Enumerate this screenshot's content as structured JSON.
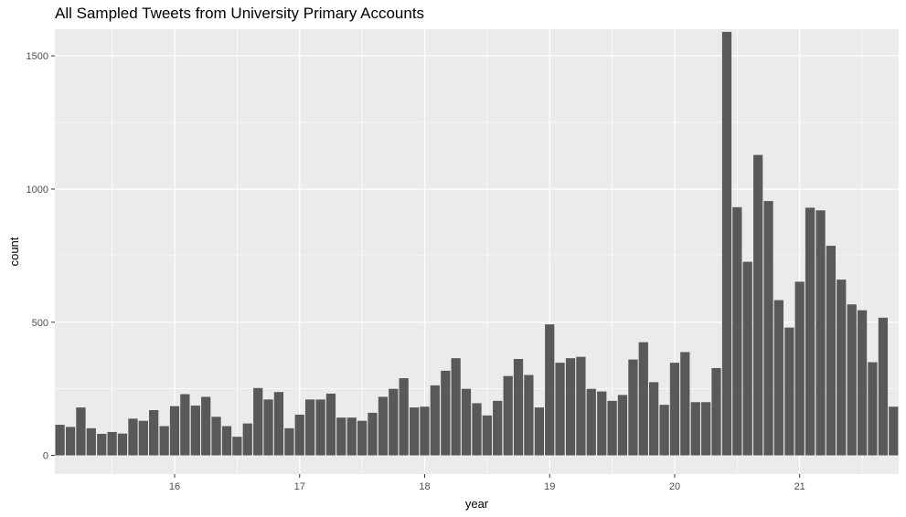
{
  "chart_data": {
    "type": "bar",
    "title": "All Sampled Tweets from University Primary Accounts",
    "xlabel": "year",
    "ylabel": "count",
    "xlim": [
      15.042,
      21.792
    ],
    "ylim": [
      -70,
      1600
    ],
    "x_ticks": [
      16,
      17,
      18,
      19,
      20,
      21
    ],
    "y_ticks": [
      0,
      500,
      1000,
      1500
    ],
    "grid": true,
    "bar_color": "#595959",
    "panel_background": "#ebebeb",
    "grid_color": "#ffffff",
    "x": [
      15.083,
      15.167,
      15.25,
      15.333,
      15.417,
      15.5,
      15.583,
      15.667,
      15.75,
      15.833,
      15.917,
      16.0,
      16.083,
      16.167,
      16.25,
      16.333,
      16.417,
      16.5,
      16.583,
      16.667,
      16.75,
      16.833,
      16.917,
      17.0,
      17.083,
      17.167,
      17.25,
      17.333,
      17.417,
      17.5,
      17.583,
      17.667,
      17.75,
      17.833,
      17.917,
      18.0,
      18.083,
      18.167,
      18.25,
      18.333,
      18.417,
      18.5,
      18.583,
      18.667,
      18.75,
      18.833,
      18.917,
      19.0,
      19.083,
      19.167,
      19.25,
      19.333,
      19.417,
      19.5,
      19.583,
      19.667,
      19.75,
      19.833,
      19.917,
      20.0,
      20.083,
      20.167,
      20.25,
      20.333,
      20.417,
      20.5,
      20.583,
      20.667,
      20.75,
      20.833,
      20.917,
      21.0,
      21.083,
      21.167,
      21.25,
      21.333,
      21.417,
      21.5,
      21.583,
      21.667,
      21.75
    ],
    "values": [
      115,
      107,
      180,
      102,
      81,
      88,
      82,
      138,
      130,
      170,
      110,
      185,
      230,
      187,
      220,
      145,
      110,
      70,
      120,
      253,
      210,
      238,
      102,
      153,
      210,
      210,
      232,
      142,
      142,
      130,
      160,
      220,
      250,
      290,
      180,
      183,
      263,
      318,
      365,
      250,
      196,
      150,
      205,
      298,
      362,
      302,
      180,
      492,
      348,
      365,
      370,
      250,
      240,
      205,
      227,
      360,
      425,
      275,
      190,
      348,
      388,
      200,
      200,
      328,
      1590,
      932,
      727,
      1128,
      955,
      583,
      480,
      652,
      930,
      920,
      787,
      660,
      567,
      545,
      350,
      517,
      183
    ]
  }
}
